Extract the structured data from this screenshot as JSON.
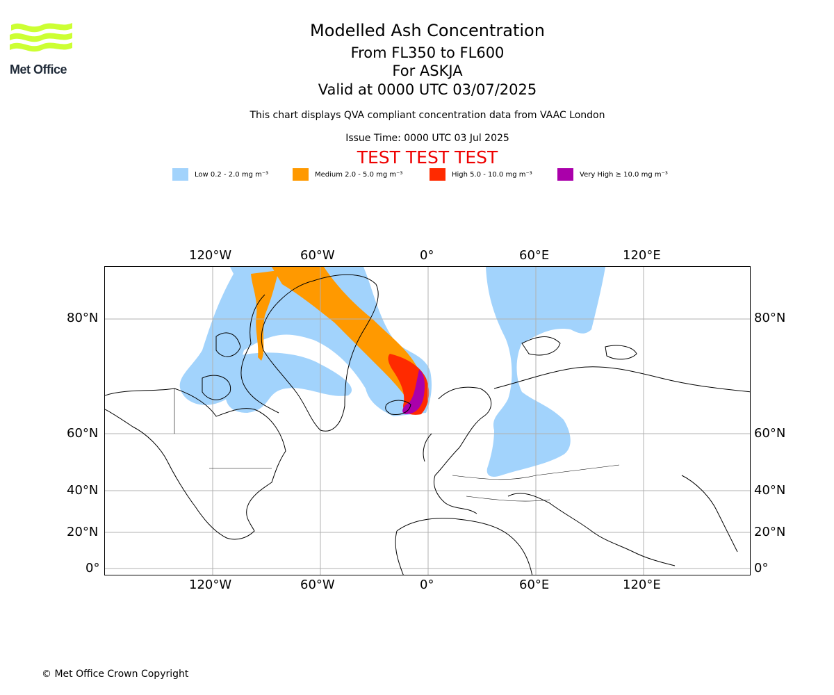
{
  "header": {
    "logo_text": "Met Office",
    "title": "Modelled Ash Concentration",
    "subtitle_levels": "From FL350 to FL600",
    "subtitle_volcano": "For ASKJA",
    "subtitle_valid": "Valid at 0000 UTC 03/07/2025",
    "note": "This chart displays QVA compliant concentration data from VAAC London",
    "issue_time": "Issue Time: 0000 UTC 03 Jul 2025",
    "test_banner": "TEST TEST TEST"
  },
  "legend": [
    {
      "label": "Low 0.2 - 2.0 mg m⁻³",
      "color": "#a2d3fc"
    },
    {
      "label": "Medium 2.0 - 5.0 mg m⁻³",
      "color": "#ff9900"
    },
    {
      "label": "High 5.0 - 10.0 mg m⁻³",
      "color": "#ff2a00"
    },
    {
      "label": "Very High  ≥  10.0 mg m⁻³",
      "color": "#aa00aa"
    }
  ],
  "map": {
    "lon_ticks": [
      "120°W",
      "60°W",
      "0°",
      "60°E",
      "120°E"
    ],
    "lat_ticks": [
      "80°N",
      "60°N",
      "40°N",
      "20°N",
      "0°"
    ],
    "grid_color": "#b0b0b0",
    "coast_color": "#000000"
  },
  "footer": {
    "copyright": "© Met Office Crown Copyright"
  }
}
